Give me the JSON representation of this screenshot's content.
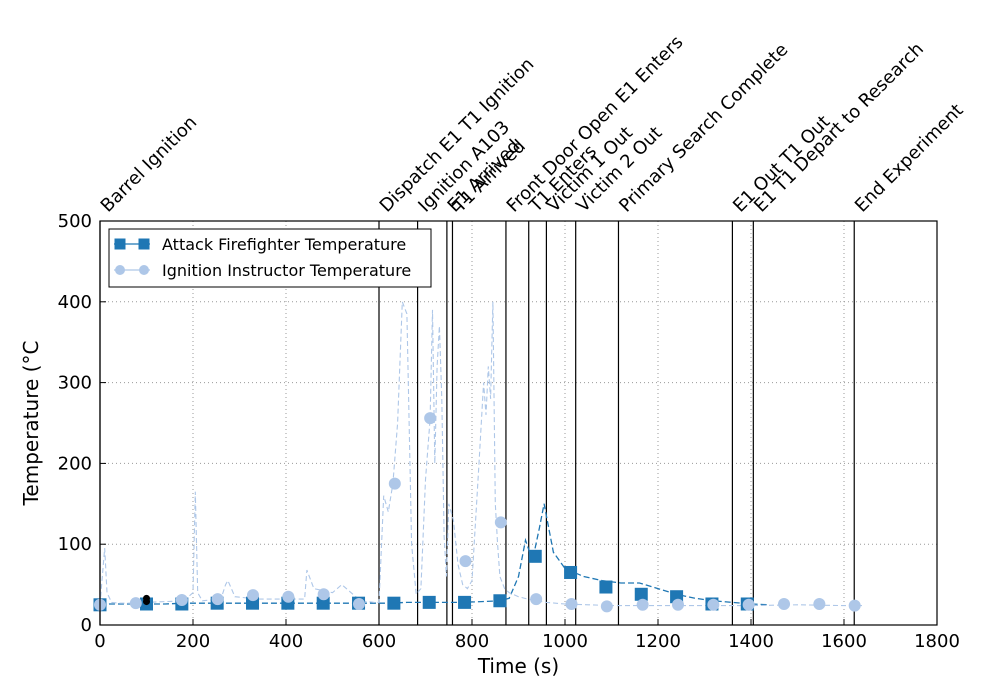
{
  "chart_data": {
    "type": "line",
    "title": "",
    "xlabel": "Time (s)",
    "ylabel": "Temperature (°C",
    "xlim": [
      0,
      1800
    ],
    "ylim": [
      0,
      500
    ],
    "x_ticks": [
      0,
      200,
      400,
      600,
      800,
      1000,
      1200,
      1400,
      1600,
      1800
    ],
    "y_ticks": [
      0,
      100,
      200,
      300,
      400,
      500
    ],
    "grid": true,
    "legend_placement": "top-left",
    "events": [
      {
        "label": "Barrel Ignition",
        "x": 0
      },
      {
        "label": "Dispatch E1 T1 Ignition",
        "x": 600
      },
      {
        "label": "Ignition A103",
        "x": 683
      },
      {
        "label": "E1 Arrived",
        "x": 746
      },
      {
        "label": "T1 Arrived",
        "x": 758
      },
      {
        "label": "Front Door Open E1 Enters",
        "x": 873
      },
      {
        "label": "T1 Enters",
        "x": 922
      },
      {
        "label": "Victim 1 Out",
        "x": 960
      },
      {
        "label": "Victim 2 Out",
        "x": 1023
      },
      {
        "label": "Primary Search Complete",
        "x": 1115
      },
      {
        "label": "E1 Out T1 Out",
        "x": 1360
      },
      {
        "label": "E1 T1 Depart to Research",
        "x": 1405
      },
      {
        "label": "End Experiment",
        "x": 1622
      }
    ],
    "series": [
      {
        "name": "Attack Firefighter Temperature",
        "color": "#1f77b4",
        "marker": "square",
        "linestyle": "dashed",
        "x": [
          0,
          20,
          60,
          100,
          140,
          180,
          220,
          260,
          300,
          340,
          380,
          420,
          460,
          500,
          540,
          580,
          620,
          660,
          700,
          740,
          780,
          820,
          860,
          880,
          900,
          915,
          930,
          945,
          955,
          960,
          975,
          1000,
          1040,
          1080,
          1120,
          1160,
          1200,
          1240,
          1280,
          1320,
          1360,
          1400,
          1440
        ],
        "y": [
          25,
          26,
          26,
          26,
          26,
          27,
          27,
          27,
          27,
          27,
          27,
          27,
          27,
          27,
          27,
          27,
          27,
          28,
          28,
          28,
          28,
          29,
          30,
          33,
          60,
          105,
          80,
          120,
          150,
          135,
          90,
          70,
          60,
          55,
          52,
          52,
          45,
          38,
          33,
          30,
          28,
          26,
          25
        ],
        "marker_x": [
          0,
          100,
          176,
          252,
          328,
          404,
          480,
          556,
          632,
          708,
          784,
          860,
          936,
          1012,
          1088,
          1164,
          1240,
          1316,
          1392
        ],
        "marker_y": [
          25,
          26,
          26,
          27,
          27,
          27,
          27,
          27,
          27,
          28,
          28,
          30,
          85,
          65,
          47,
          38,
          35,
          26,
          26
        ]
      },
      {
        "name": "Ignition Instructor Temperature",
        "color": "#aec7e8",
        "marker": "circle",
        "linestyle": "dashed",
        "x": [
          0,
          5,
          10,
          15,
          25,
          40,
          60,
          80,
          100,
          140,
          180,
          200,
          205,
          210,
          220,
          260,
          270,
          275,
          290,
          340,
          400,
          440,
          445,
          460,
          500,
          520,
          560,
          590,
          600,
          610,
          620,
          630,
          640,
          650,
          660,
          670,
          680,
          690,
          700,
          710,
          715,
          720,
          725,
          730,
          735,
          740,
          745,
          750,
          760,
          770,
          780,
          790,
          800,
          815,
          825,
          830,
          835,
          840,
          845,
          850,
          855,
          860,
          870,
          880,
          900,
          920,
          940,
          960,
          1000,
          1050,
          1100,
          1150,
          1200,
          1300,
          1400,
          1500,
          1600,
          1640
        ],
        "y": [
          25,
          60,
          95,
          40,
          28,
          27,
          27,
          27,
          28,
          29,
          30,
          40,
          165,
          40,
          30,
          32,
          50,
          55,
          35,
          32,
          32,
          32,
          68,
          45,
          40,
          50,
          30,
          28,
          28,
          160,
          140,
          175,
          250,
          400,
          385,
          100,
          38,
          45,
          180,
          255,
          390,
          200,
          320,
          370,
          280,
          110,
          60,
          150,
          130,
          75,
          50,
          45,
          55,
          200,
          300,
          260,
          320,
          280,
          400,
          150,
          100,
          60,
          45,
          40,
          35,
          32,
          30,
          28,
          26,
          25,
          24,
          24,
          24,
          24,
          24,
          25,
          24,
          24
        ],
        "marker_x": [
          0,
          77,
          176,
          253,
          329,
          405,
          481,
          557,
          634,
          710,
          786,
          862,
          938,
          1014,
          1090,
          1167,
          1243,
          1319,
          1395,
          1471,
          1547,
          1623
        ],
        "marker_y": [
          25,
          27,
          31,
          32,
          37,
          35,
          38,
          26,
          175,
          256,
          79,
          127,
          32,
          26,
          23,
          25,
          25,
          25,
          25,
          26,
          26,
          24
        ]
      }
    ],
    "extra_points": [
      {
        "x": 100,
        "y": 33,
        "color": "#000000"
      },
      {
        "x": 100,
        "y": 29,
        "color": "#000000"
      }
    ]
  }
}
